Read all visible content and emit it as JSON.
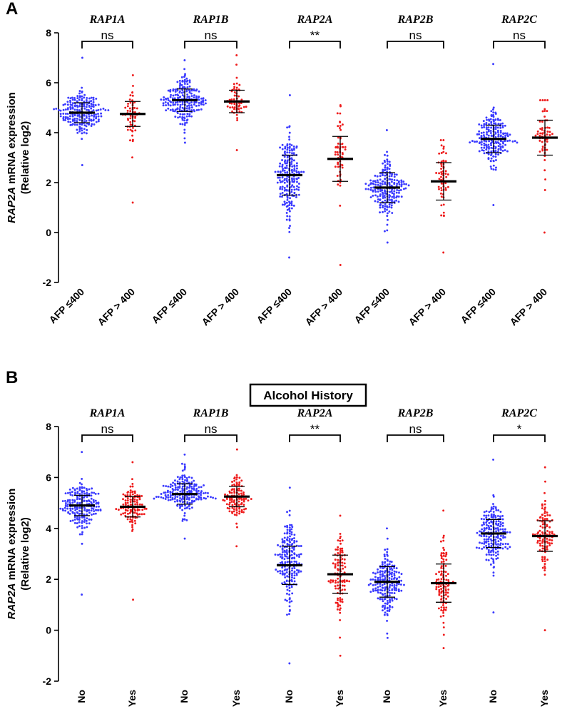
{
  "chart_data": [
    {
      "panel": "A",
      "type": "scatter",
      "subtype": "dot-plot (scatter dot plot with mean ± SD)",
      "title": "",
      "ylabel_gene": "RAP2A",
      "ylabel_rest": " mRNA expression",
      "ylabel_line2": "(Relative log2)",
      "ylim": [
        -2,
        8
      ],
      "yticks": [
        -2,
        0,
        2,
        4,
        6,
        8
      ],
      "group_colors": [
        "#3a3aff",
        "#ee1c1c"
      ],
      "categories": [
        "AFP ≤400",
        "AFP > 400",
        "AFP ≤400",
        "AFP > 400",
        "AFP ≤400",
        "AFP > 400",
        "AFP ≤400",
        "AFP > 400",
        "AFP ≤400",
        "AFP > 400"
      ],
      "genes": [
        {
          "name": "RAP1A",
          "significance": "ns",
          "series": [
            {
              "name": "AFP ≤400",
              "mean": 4.8,
              "sd": 0.4,
              "min": 2.7,
              "max": 7.0,
              "n": 210
            },
            {
              "name": "AFP > 400",
              "mean": 4.75,
              "sd": 0.5,
              "min": 1.2,
              "max": 6.3,
              "n": 60
            }
          ]
        },
        {
          "name": "RAP1B",
          "significance": "ns",
          "series": [
            {
              "name": "AFP ≤400",
              "mean": 5.3,
              "sd": 0.45,
              "min": 3.6,
              "max": 6.9,
              "n": 210
            },
            {
              "name": "AFP > 400",
              "mean": 5.25,
              "sd": 0.45,
              "min": 3.3,
              "max": 7.1,
              "n": 60
            }
          ]
        },
        {
          "name": "RAP2A",
          "significance": "**",
          "series": [
            {
              "name": "AFP ≤400",
              "mean": 2.3,
              "sd": 0.8,
              "min": -1.0,
              "max": 5.5,
              "n": 210
            },
            {
              "name": "AFP > 400",
              "mean": 2.95,
              "sd": 0.9,
              "min": -1.3,
              "max": 5.1,
              "n": 60
            }
          ]
        },
        {
          "name": "RAP2B",
          "significance": "ns",
          "series": [
            {
              "name": "AFP ≤400",
              "mean": 1.8,
              "sd": 0.6,
              "min": -0.4,
              "max": 4.1,
              "n": 210
            },
            {
              "name": "AFP > 400",
              "mean": 2.05,
              "sd": 0.75,
              "min": -0.8,
              "max": 3.7,
              "n": 60
            }
          ]
        },
        {
          "name": "RAP2C",
          "significance": "ns",
          "series": [
            {
              "name": "AFP ≤400",
              "mean": 3.75,
              "sd": 0.55,
              "min": 1.1,
              "max": 6.75,
              "n": 210
            },
            {
              "name": "AFP > 400",
              "mean": 3.8,
              "sd": 0.7,
              "min": 0.0,
              "max": 5.3,
              "n": 60
            }
          ]
        }
      ]
    },
    {
      "panel": "B",
      "type": "scatter",
      "subtype": "dot-plot (scatter dot plot with mean ± SD)",
      "title": "Alcohol History",
      "ylabel_gene": "RAP2A",
      "ylabel_rest": " mRNA expression",
      "ylabel_line2": "(Relative log2)",
      "ylim": [
        -2,
        8
      ],
      "yticks": [
        -2,
        0,
        2,
        4,
        6,
        8
      ],
      "group_colors": [
        "#3a3aff",
        "#ee1c1c"
      ],
      "categories": [
        "No",
        "Yes",
        "No",
        "Yes",
        "No",
        "Yes",
        "No",
        "Yes",
        "No",
        "Yes"
      ],
      "genes": [
        {
          "name": "RAP1A",
          "significance": "ns",
          "series": [
            {
              "name": "No",
              "mean": 4.9,
              "sd": 0.4,
              "min": 1.4,
              "max": 7.0,
              "n": 200
            },
            {
              "name": "Yes",
              "mean": 4.85,
              "sd": 0.4,
              "min": 1.2,
              "max": 6.6,
              "n": 110
            }
          ]
        },
        {
          "name": "RAP1B",
          "significance": "ns",
          "series": [
            {
              "name": "No",
              "mean": 5.35,
              "sd": 0.4,
              "min": 3.6,
              "max": 6.9,
              "n": 200
            },
            {
              "name": "Yes",
              "mean": 5.25,
              "sd": 0.4,
              "min": 3.3,
              "max": 7.1,
              "n": 110
            }
          ]
        },
        {
          "name": "RAP2A",
          "significance": "**",
          "series": [
            {
              "name": "No",
              "mean": 2.55,
              "sd": 0.75,
              "min": -1.3,
              "max": 5.6,
              "n": 200
            },
            {
              "name": "Yes",
              "mean": 2.2,
              "sd": 0.75,
              "min": -1.0,
              "max": 4.5,
              "n": 110
            }
          ]
        },
        {
          "name": "RAP2B",
          "significance": "ns",
          "series": [
            {
              "name": "No",
              "mean": 1.9,
              "sd": 0.6,
              "min": -0.3,
              "max": 4.0,
              "n": 200
            },
            {
              "name": "Yes",
              "mean": 1.85,
              "sd": 0.75,
              "min": -0.7,
              "max": 4.7,
              "n": 110
            }
          ]
        },
        {
          "name": "RAP2C",
          "significance": "*",
          "series": [
            {
              "name": "No",
              "mean": 3.8,
              "sd": 0.55,
              "min": 0.7,
              "max": 6.7,
              "n": 200
            },
            {
              "name": "Yes",
              "mean": 3.7,
              "sd": 0.6,
              "min": 0.0,
              "max": 6.4,
              "n": 110
            }
          ]
        }
      ]
    }
  ]
}
